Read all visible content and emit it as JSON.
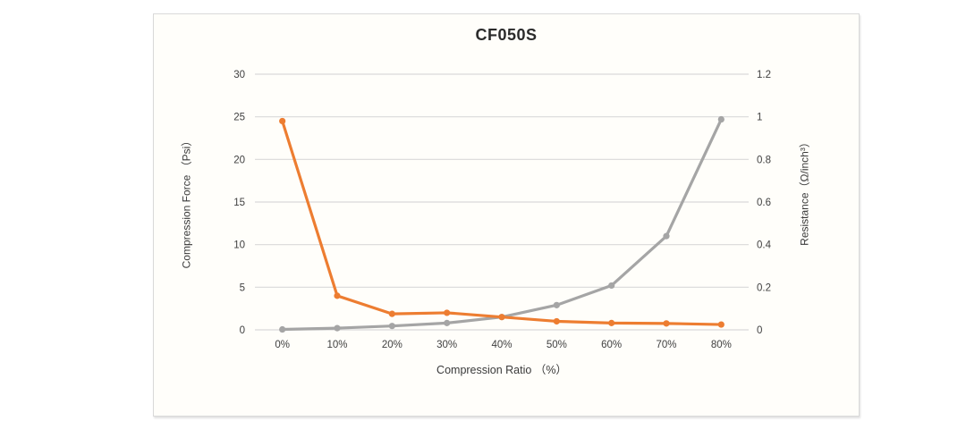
{
  "chart": {
    "frame_border_color": "#d9d9d9",
    "background_color": "#fffefa",
    "grid_color": "#d9d9d9",
    "axis_text_color": "#404040",
    "title_color": "#2b2b2b"
  },
  "chart_data": {
    "type": "line",
    "title": "CF050S",
    "xlabel": "Compression Ratio （%）",
    "ylabel_left": "Compression Force （Psi）",
    "ylabel_right": "Resistance（Ω/inch³）",
    "categories": [
      "0%",
      "10%",
      "20%",
      "30%",
      "40%",
      "50%",
      "60%",
      "70%",
      "80%"
    ],
    "series": [
      {
        "name": "Compression Force",
        "axis": "left",
        "color": "#a5a5a5",
        "values": [
          0.05,
          0.2,
          0.45,
          0.8,
          1.5,
          2.9,
          5.2,
          11,
          24.7
        ]
      },
      {
        "name": "Resistance",
        "axis": "right",
        "color": "#ed7d31",
        "values": [
          0.98,
          0.16,
          0.075,
          0.08,
          0.06,
          0.04,
          0.032,
          0.03,
          0.025
        ]
      }
    ],
    "ylim_left": [
      0,
      30
    ],
    "ylim_right": [
      0,
      1.2
    ],
    "yticks_left": [
      "0",
      "5",
      "10",
      "15",
      "20",
      "25",
      "30"
    ],
    "yticks_right": [
      "0",
      "0.2",
      "0.4",
      "0.6",
      "0.8",
      "1",
      "1.2"
    ],
    "grid": "horizontal",
    "legend": "none"
  }
}
